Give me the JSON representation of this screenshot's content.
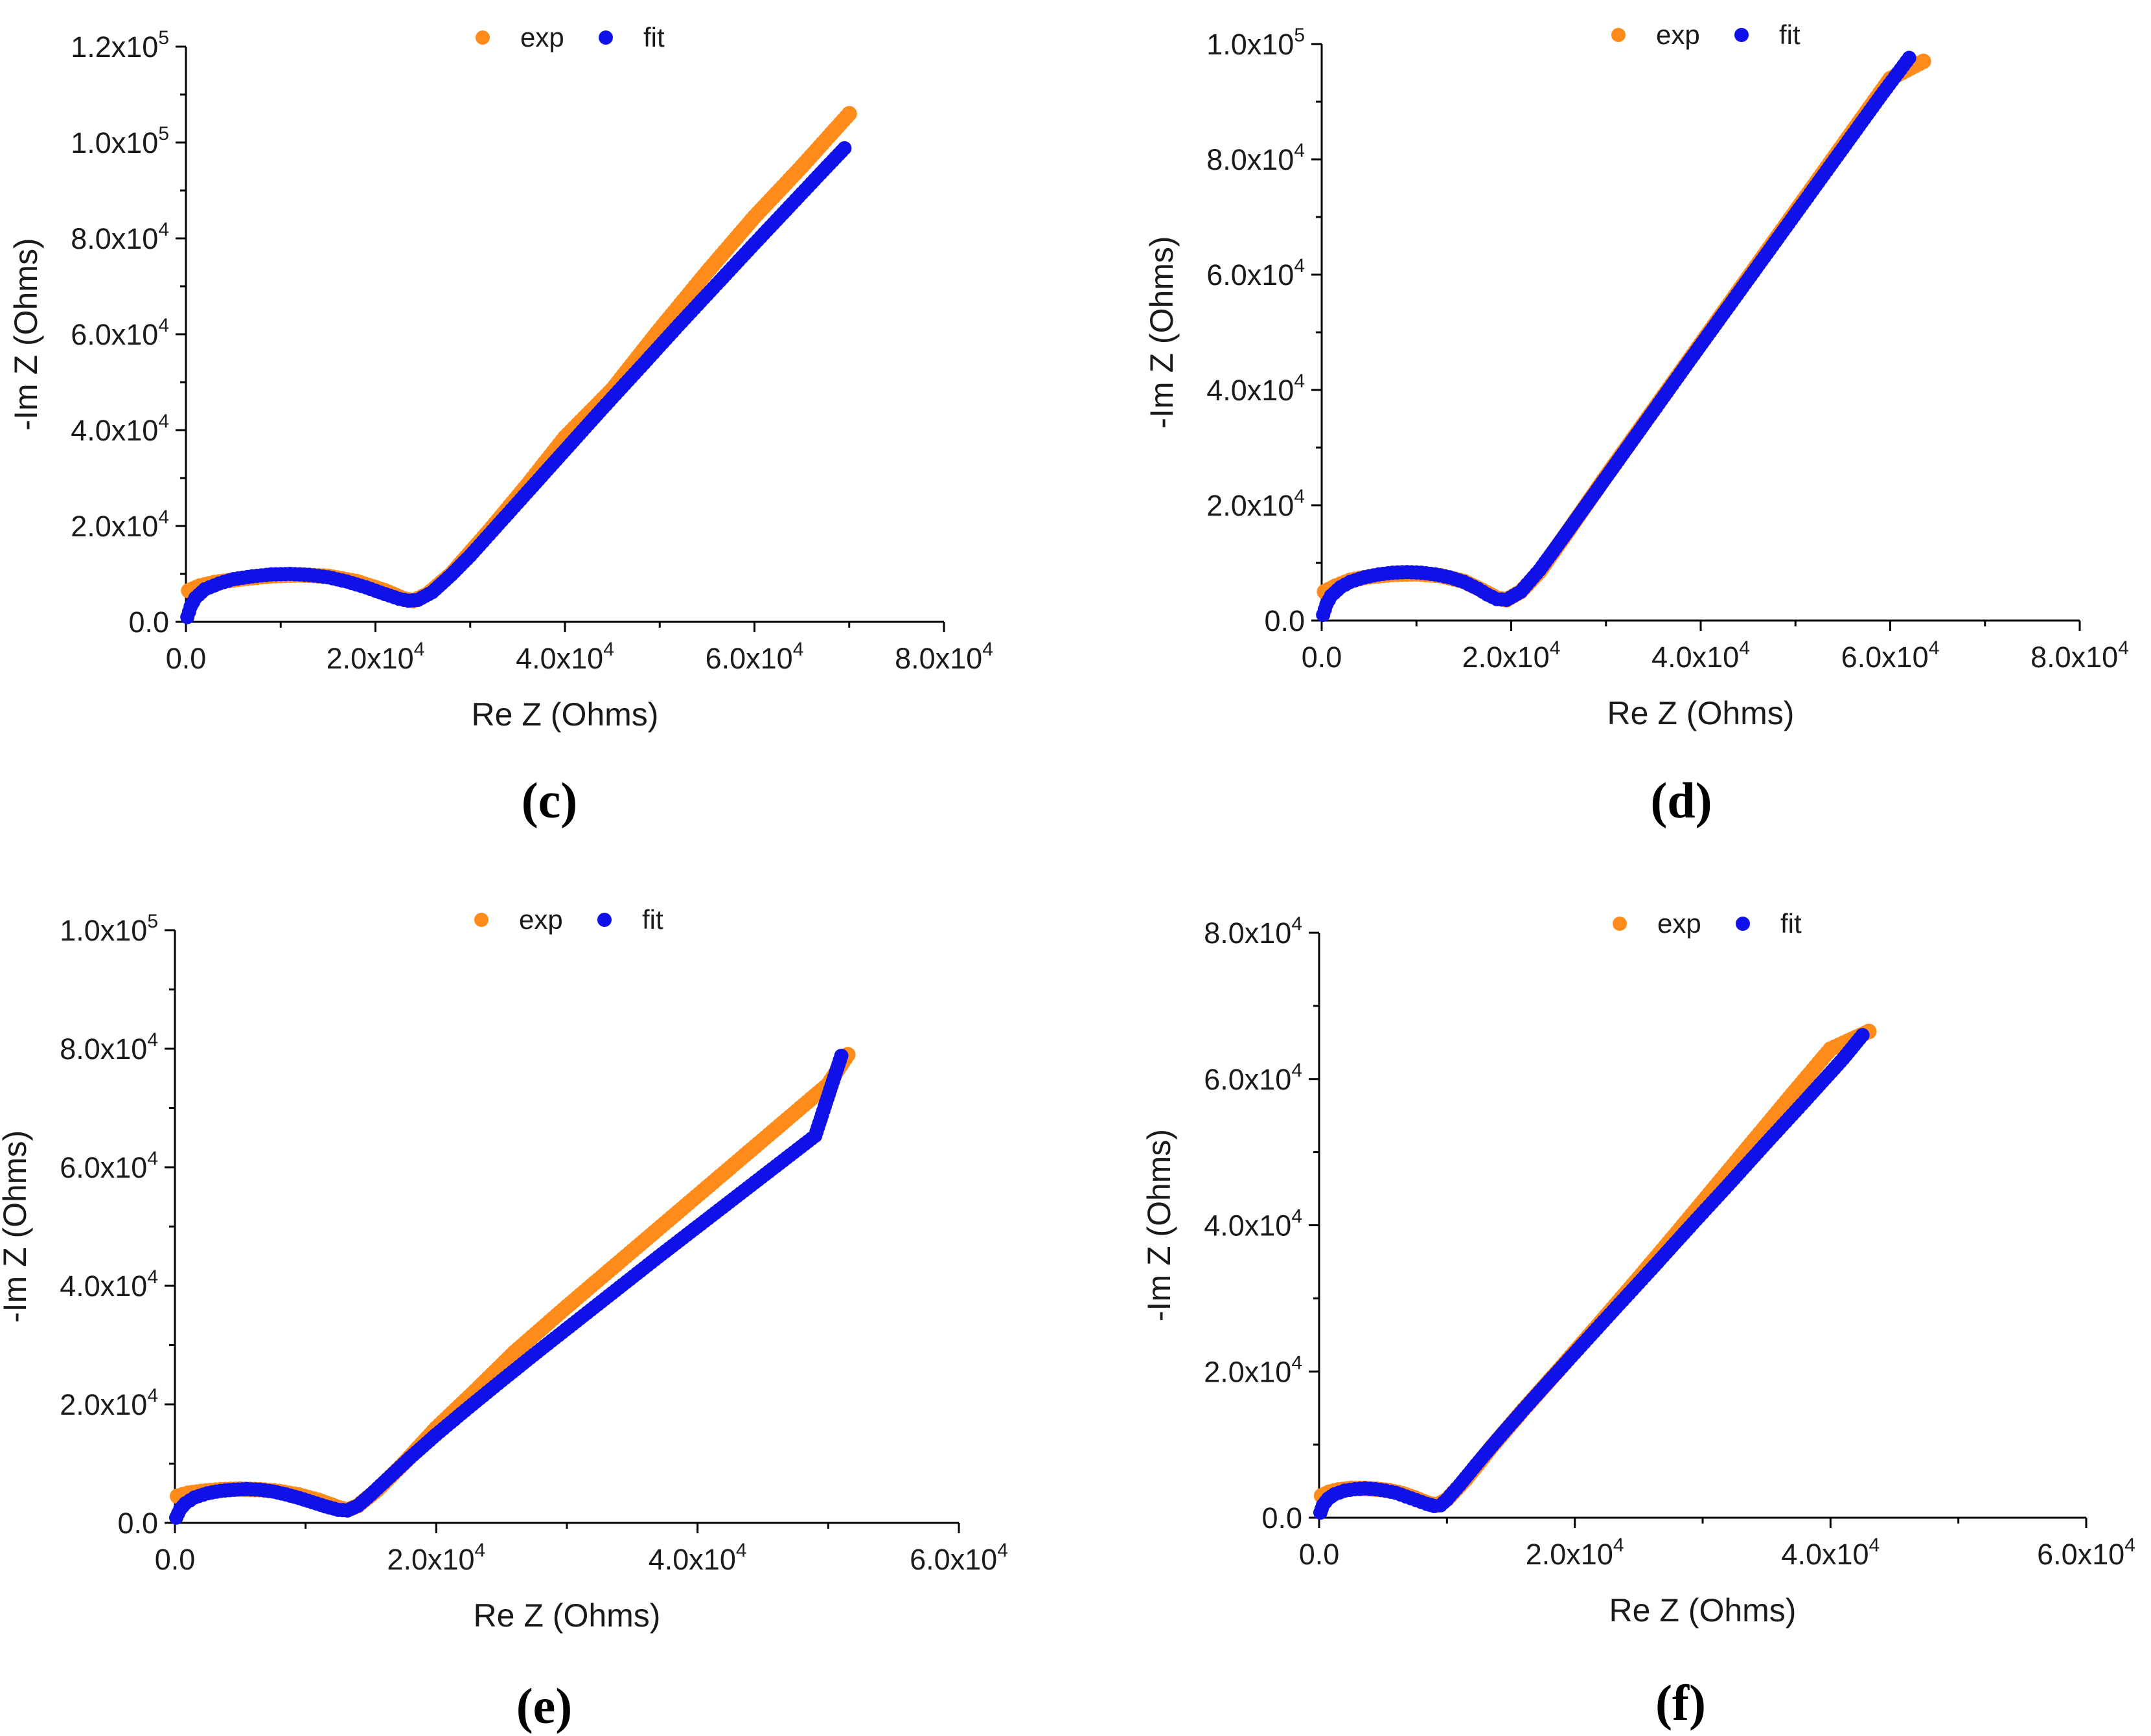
{
  "colors": {
    "exp": "#ff8c1a",
    "fit": "#1010e8",
    "axis": "#000000"
  },
  "chart_data": [
    {
      "type": "scatter",
      "panel_label": "(c)",
      "xlabel": "Re Z (Ohms)",
      "ylabel": "-Im Z (Ohms)",
      "xlim": [
        0,
        80000
      ],
      "ylim": [
        0,
        120000
      ],
      "x_ticks": [
        0,
        20000,
        40000,
        60000,
        80000
      ],
      "x_tick_labels": [
        {
          "m": "0.0",
          "e": ""
        },
        {
          "m": "2.0x10",
          "e": "4"
        },
        {
          "m": "4.0x10",
          "e": "4"
        },
        {
          "m": "6.0x10",
          "e": "4"
        },
        {
          "m": "8.0x10",
          "e": "4"
        }
      ],
      "y_ticks": [
        0,
        20000,
        40000,
        60000,
        80000,
        100000,
        120000
      ],
      "y_tick_labels": [
        {
          "m": "0.0",
          "e": ""
        },
        {
          "m": "2.0x10",
          "e": "4"
        },
        {
          "m": "4.0x10",
          "e": "4"
        },
        {
          "m": "6.0x10",
          "e": "4"
        },
        {
          "m": "8.0x10",
          "e": "4"
        },
        {
          "m": "1.0x10",
          "e": "5"
        },
        {
          "m": "1.2x10",
          "e": "5"
        }
      ],
      "legend": [
        "exp",
        "fit"
      ],
      "series": [
        {
          "name": "exp",
          "x": [
            300,
            1500,
            3000,
            6000,
            9000,
            12000,
            15000,
            18000,
            21000,
            23000,
            24000,
            25500,
            28000,
            32000,
            36000,
            40000,
            45000,
            50000,
            55000,
            60000,
            65000,
            70000
          ],
          "y": [
            6500,
            7500,
            8200,
            9000,
            9600,
            9800,
            9500,
            8400,
            6500,
            4800,
            4400,
            5800,
            10000,
            19000,
            28500,
            38500,
            48500,
            61000,
            73000,
            84500,
            95000,
            106000
          ]
        },
        {
          "name": "fit",
          "x": [
            150,
            500,
            1000,
            2000,
            3500,
            5000,
            7000,
            9000,
            11000,
            13000,
            15000,
            17000,
            19000,
            21000,
            22500,
            23500,
            24500,
            26000,
            28000,
            30000,
            33000,
            36000,
            40000,
            44000,
            48000,
            52000,
            56000,
            60000,
            64000,
            67000,
            69500
          ],
          "y": [
            1000,
            3200,
            5000,
            6800,
            8000,
            8900,
            9500,
            9900,
            10000,
            9800,
            9300,
            8400,
            7200,
            5800,
            4800,
            4400,
            4600,
            6200,
            9800,
            13800,
            20400,
            27000,
            35800,
            44600,
            53200,
            61900,
            70400,
            78900,
            87300,
            93600,
            98800
          ]
        }
      ]
    },
    {
      "type": "scatter",
      "panel_label": "(d)",
      "xlabel": "Re Z (Ohms)",
      "ylabel": "-Im Z (Ohms)",
      "xlim": [
        0,
        80000
      ],
      "ylim": [
        0,
        100000
      ],
      "x_ticks": [
        0,
        20000,
        40000,
        60000,
        80000
      ],
      "x_tick_labels": [
        {
          "m": "0.0",
          "e": ""
        },
        {
          "m": "2.0x10",
          "e": "4"
        },
        {
          "m": "4.0x10",
          "e": "4"
        },
        {
          "m": "6.0x10",
          "e": "4"
        },
        {
          "m": "8.0x10",
          "e": "4"
        }
      ],
      "y_ticks": [
        0,
        20000,
        40000,
        60000,
        80000,
        100000
      ],
      "y_tick_labels": [
        {
          "m": "0.0",
          "e": ""
        },
        {
          "m": "2.0x10",
          "e": "4"
        },
        {
          "m": "4.0x10",
          "e": "4"
        },
        {
          "m": "6.0x10",
          "e": "4"
        },
        {
          "m": "8.0x10",
          "e": "4"
        },
        {
          "m": "1.0x10",
          "e": "5"
        }
      ],
      "legend": [
        "exp",
        "fit"
      ],
      "series": [
        {
          "name": "exp",
          "x": [
            300,
            1500,
            3000,
            5000,
            7500,
            10000,
            12500,
            15000,
            17000,
            18500,
            19500,
            21000,
            23000,
            26000,
            30000,
            35000,
            40000,
            45000,
            50000,
            55000,
            60000,
            63500
          ],
          "y": [
            5000,
            6000,
            7000,
            7600,
            8000,
            8100,
            7800,
            6800,
            5200,
            3900,
            3600,
            5000,
            8500,
            15500,
            25000,
            36500,
            48000,
            59500,
            71000,
            82500,
            94000,
            97000
          ]
        },
        {
          "name": "fit",
          "x": [
            150,
            500,
            1000,
            2000,
            3000,
            4500,
            6000,
            7500,
            9000,
            10500,
            12000,
            13500,
            15000,
            16500,
            17500,
            18500,
            19500,
            21000,
            23000,
            25000,
            28000,
            31000,
            35000,
            39000,
            43000,
            47000,
            51000,
            55000,
            59000,
            62000
          ],
          "y": [
            1000,
            2800,
            4300,
            5800,
            6700,
            7500,
            8000,
            8300,
            8400,
            8300,
            8000,
            7500,
            6700,
            5500,
            4500,
            3700,
            3600,
            5000,
            8800,
            13300,
            20200,
            27100,
            36300,
            45500,
            54600,
            63700,
            72800,
            81900,
            91000,
            97600
          ]
        }
      ]
    },
    {
      "type": "scatter",
      "panel_label": "(e)",
      "xlabel": "Re Z (Ohms)",
      "ylabel": "-Im Z (Ohms)",
      "xlim": [
        0,
        60000
      ],
      "ylim": [
        0,
        100000
      ],
      "x_ticks": [
        0,
        20000,
        40000,
        60000
      ],
      "x_tick_labels": [
        {
          "m": "0.0",
          "e": ""
        },
        {
          "m": "2.0x10",
          "e": "4"
        },
        {
          "m": "4.0x10",
          "e": "4"
        },
        {
          "m": "6.0x10",
          "e": "4"
        }
      ],
      "y_ticks": [
        0,
        20000,
        40000,
        60000,
        80000,
        100000
      ],
      "y_tick_labels": [
        {
          "m": "0.0",
          "e": ""
        },
        {
          "m": "2.0x10",
          "e": "4"
        },
        {
          "m": "4.0x10",
          "e": "4"
        },
        {
          "m": "6.0x10",
          "e": "4"
        },
        {
          "m": "8.0x10",
          "e": "4"
        },
        {
          "m": "1.0x10",
          "e": "5"
        }
      ],
      "legend": [
        "exp",
        "fit"
      ],
      "series": [
        {
          "name": "exp",
          "x": [
            200,
            1000,
            2000,
            3500,
            5000,
            6500,
            8000,
            9500,
            11000,
            12500,
            13200,
            14000,
            15500,
            17500,
            20000,
            23000,
            26000,
            30000,
            34000,
            38000,
            42000,
            46000,
            50000,
            51500
          ],
          "y": [
            4500,
            5000,
            5300,
            5600,
            5700,
            5600,
            5300,
            4700,
            3800,
            2600,
            2200,
            2900,
            5600,
            10000,
            16000,
            22300,
            28800,
            36500,
            44000,
            51500,
            59000,
            66500,
            74000,
            79000
          ]
        },
        {
          "name": "fit",
          "x": [
            100,
            400,
            800,
            1500,
            2500,
            3500,
            4500,
            5500,
            6500,
            7500,
            8500,
            9500,
            10500,
            11500,
            12500,
            13200,
            14000,
            15000,
            16500,
            18000,
            20000,
            22500,
            25000,
            28000,
            31000,
            34000,
            37000,
            40000,
            43000,
            46000,
            49000,
            51000
          ],
          "y": [
            900,
            2300,
            3300,
            4300,
            5000,
            5400,
            5600,
            5700,
            5600,
            5300,
            4800,
            4200,
            3500,
            2800,
            2200,
            2100,
            2900,
            4800,
            7900,
            11000,
            14900,
            19500,
            24000,
            29300,
            34500,
            39700,
            44900,
            50000,
            55100,
            60200,
            65300,
            78800
          ]
        }
      ]
    },
    {
      "type": "scatter",
      "panel_label": "(f)",
      "xlabel": "Re Z (Ohms)",
      "ylabel": "-Im Z (Ohms)",
      "xlim": [
        0,
        60000
      ],
      "ylim": [
        0,
        80000
      ],
      "x_ticks": [
        0,
        20000,
        40000,
        60000
      ],
      "x_tick_labels": [
        {
          "m": "0.0",
          "e": ""
        },
        {
          "m": "2.0x10",
          "e": "4"
        },
        {
          "m": "4.0x10",
          "e": "4"
        },
        {
          "m": "6.0x10",
          "e": "4"
        }
      ],
      "y_ticks": [
        0,
        20000,
        40000,
        60000,
        80000
      ],
      "y_tick_labels": [
        {
          "m": "0.0",
          "e": ""
        },
        {
          "m": "2.0x10",
          "e": "4"
        },
        {
          "m": "4.0x10",
          "e": "4"
        },
        {
          "m": "6.0x10",
          "e": "4"
        },
        {
          "m": "8.0x10",
          "e": "4"
        }
      ],
      "legend": [
        "exp",
        "fit"
      ],
      "series": [
        {
          "name": "exp",
          "x": [
            200,
            800,
            1500,
            2500,
            3500,
            4500,
            5500,
            6500,
            7500,
            8500,
            9200,
            10000,
            11500,
            13500,
            16000,
            19000,
            22000,
            25000,
            28000,
            31000,
            34000,
            37000,
            40000,
            43000
          ],
          "y": [
            3000,
            3500,
            3800,
            4000,
            4000,
            3900,
            3700,
            3300,
            2700,
            2000,
            1700,
            2500,
            5300,
            9700,
            14800,
            20700,
            26700,
            32800,
            39000,
            45300,
            51600,
            57900,
            64100,
            66500
          ]
        },
        {
          "name": "fit",
          "x": [
            100,
            300,
            700,
            1200,
            2000,
            2800,
            3600,
            4400,
            5200,
            6000,
            6800,
            7600,
            8400,
            9000,
            9500,
            10000,
            11000,
            12500,
            14000,
            16000,
            18000,
            20500,
            23000,
            26000,
            29000,
            32000,
            35000,
            38000,
            41000,
            42500
          ],
          "y": [
            700,
            1700,
            2600,
            3200,
            3700,
            3900,
            4000,
            3900,
            3700,
            3400,
            2900,
            2400,
            1900,
            1600,
            1700,
            2500,
            4500,
            7700,
            10800,
            14800,
            18700,
            23500,
            28300,
            34000,
            39800,
            45500,
            51300,
            57000,
            62800,
            66000
          ]
        }
      ]
    }
  ]
}
